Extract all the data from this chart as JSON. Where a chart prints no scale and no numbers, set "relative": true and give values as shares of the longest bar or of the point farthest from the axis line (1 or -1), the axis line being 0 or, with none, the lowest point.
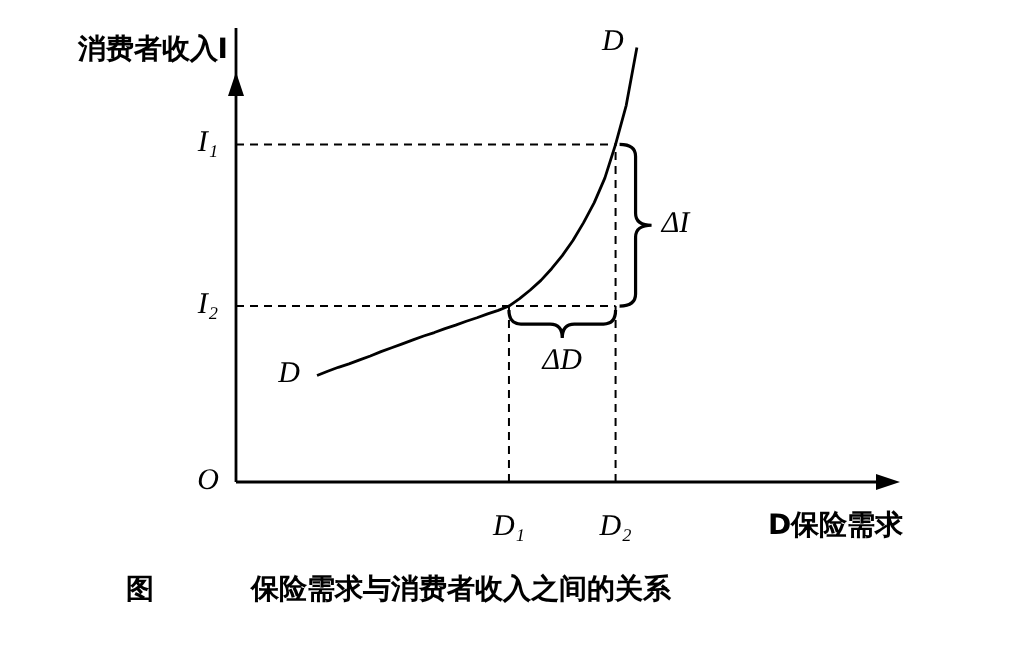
{
  "chart_data": {
    "type": "line",
    "relative": true,
    "title": "图          保险需求与消费者收入之间的关系",
    "xlabel": "D保险需求",
    "ylabel": "消费者收入I",
    "categories": [
      null,
      null,
      null,
      null,
      null,
      null,
      null,
      null,
      null,
      null,
      null,
      null,
      null,
      null,
      null,
      null,
      null,
      null,
      "D₁",
      null,
      null,
      null,
      null,
      null,
      null,
      null,
      null,
      null,
      "D₂",
      null,
      null
    ],
    "series": [
      {
        "name": "D",
        "color": "#000000",
        "values": [
          0.245,
          0.255,
          0.264,
          0.272,
          0.281,
          0.29,
          0.3,
          0.309,
          0.318,
          0.327,
          0.336,
          0.344,
          0.353,
          0.361,
          0.37,
          0.378,
          0.387,
          0.395,
          0.405,
          0.422,
          0.442,
          0.464,
          0.491,
          0.521,
          0.556,
          0.597,
          0.643,
          0.7,
          0.777,
          0.867,
          1
        ]
      }
    ],
    "ref_lines": [
      {
        "axis": "y",
        "value": 0.777,
        "label": "I₁",
        "line_style": "dashed"
      },
      {
        "axis": "y",
        "value": 0.405,
        "label": "I₂",
        "line_style": "dashed"
      },
      {
        "axis": "x",
        "value": "D₁",
        "line_style": "dashed"
      },
      {
        "axis": "x",
        "value": "D₂",
        "line_style": "dashed"
      }
    ],
    "annotations": [
      "ΔI",
      "ΔD",
      "O"
    ],
    "grid": false,
    "legend": false,
    "marker": "none",
    "line_style": "solid"
  }
}
